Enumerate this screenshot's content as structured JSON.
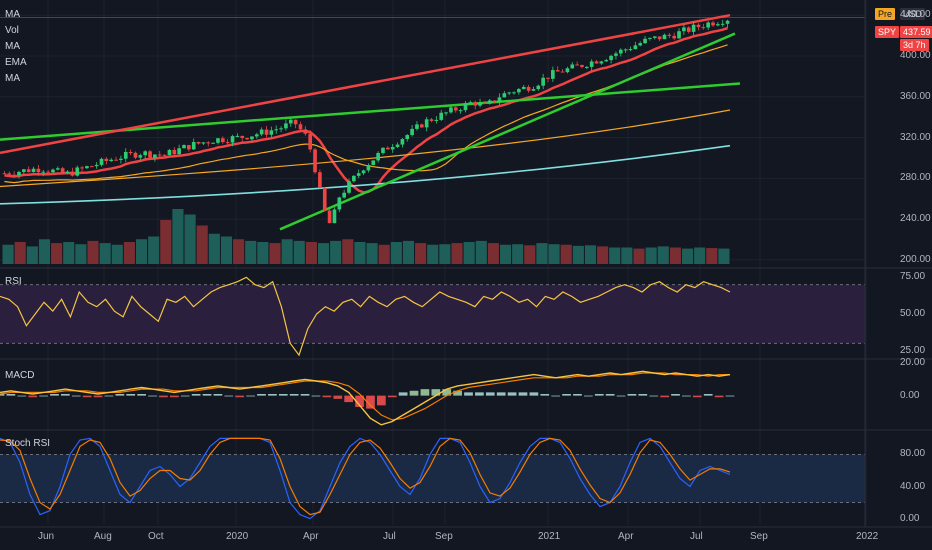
{
  "top_right": {
    "session": "Pre",
    "currency": "USD",
    "symbol": "SPY",
    "price": "437.59",
    "countdown": "3d 7h"
  },
  "indicator_labels": [
    "MA",
    "Vol",
    "MA",
    "EMA",
    "MA"
  ],
  "panes": {
    "rsi_label": "RSI",
    "macd_label": "MACD",
    "stoch_label": "Stoch RSI"
  },
  "colors": {
    "background": "#131722",
    "up": "#26a69a",
    "down": "#ef5350",
    "trend_green": "#2ecc2e",
    "trend_red": "#f04444",
    "ma_orange": "#f5a623",
    "ma_cyan": "#80e0e0",
    "rsi_line": "#f5c542",
    "rsi_band": "#2a1f3d",
    "macd_line": "#f5c542",
    "signal_line": "#f57c00",
    "stoch_k": "#2962ff",
    "stoch_d": "#f57c00"
  },
  "chart_data": [
    {
      "type": "candlestick",
      "x_axis_labels": [
        "Jun",
        "Aug",
        "Oct",
        "2020",
        "Apr",
        "Jul",
        "Sep",
        "2021",
        "Apr",
        "Jul",
        "Sep",
        "2022"
      ],
      "y_axis_labels": [
        "440.00",
        "400.00",
        "360.00",
        "320.00",
        "280.00",
        "240.00",
        "200.00"
      ],
      "ylim": [
        195,
        450
      ],
      "close_path": [
        [
          0,
          285
        ],
        [
          6,
          290
        ],
        [
          10,
          284
        ],
        [
          14,
          292
        ],
        [
          18,
          300
        ],
        [
          22,
          305
        ],
        [
          26,
          303
        ],
        [
          30,
          312
        ],
        [
          34,
          318
        ],
        [
          38,
          320
        ],
        [
          42,
          325
        ],
        [
          45,
          330
        ],
        [
          47,
          335
        ],
        [
          49,
          320
        ],
        [
          50,
          300
        ],
        [
          51,
          270
        ],
        [
          52,
          245
        ],
        [
          53,
          232
        ],
        [
          54,
          260
        ],
        [
          56,
          275
        ],
        [
          58,
          290
        ],
        [
          60,
          300
        ],
        [
          62,
          310
        ],
        [
          64,
          318
        ],
        [
          66,
          325
        ],
        [
          68,
          335
        ],
        [
          70,
          340
        ],
        [
          72,
          345
        ],
        [
          74,
          350
        ],
        [
          76,
          355
        ],
        [
          78,
          350
        ],
        [
          80,
          360
        ],
        [
          82,
          365
        ],
        [
          84,
          368
        ],
        [
          86,
          372
        ],
        [
          88,
          380
        ],
        [
          90,
          385
        ],
        [
          92,
          388
        ],
        [
          94,
          392
        ],
        [
          96,
          396
        ],
        [
          98,
          400
        ],
        [
          100,
          405
        ],
        [
          102,
          410
        ],
        [
          104,
          415
        ],
        [
          106,
          418
        ],
        [
          108,
          420
        ],
        [
          110,
          424
        ],
        [
          112,
          428
        ],
        [
          114,
          432
        ],
        [
          116,
          435
        ],
        [
          118,
          437.59
        ]
      ],
      "volume_relative": [
        0.35,
        0.4,
        0.32,
        0.45,
        0.38,
        0.4,
        0.36,
        0.42,
        0.38,
        0.35,
        0.4,
        0.45,
        0.5,
        0.8,
        1.0,
        0.9,
        0.7,
        0.55,
        0.5,
        0.45,
        0.42,
        0.4,
        0.38,
        0.45,
        0.42,
        0.4,
        0.38,
        0.42,
        0.45,
        0.4,
        0.38,
        0.35,
        0.4,
        0.42,
        0.38,
        0.35,
        0.36,
        0.38,
        0.4,
        0.42,
        0.38,
        0.35,
        0.36,
        0.34,
        0.38,
        0.36,
        0.35,
        0.33,
        0.34,
        0.32,
        0.3,
        0.3,
        0.28,
        0.3,
        0.32,
        0.3,
        0.28,
        0.3,
        0.29,
        0.28
      ]
    },
    {
      "type": "line",
      "name_on_chart": "RSI",
      "y_axis_labels": [
        "75.00",
        "50.00",
        "25.00"
      ],
      "ylim": [
        20,
        80
      ],
      "bands": [
        30,
        70
      ],
      "values": [
        62,
        60,
        55,
        42,
        50,
        58,
        52,
        60,
        48,
        65,
        58,
        55,
        60,
        52,
        48,
        62,
        55,
        50,
        45,
        60,
        58,
        62,
        55,
        60,
        65,
        68,
        70,
        72,
        75,
        70,
        68,
        72,
        55,
        30,
        22,
        40,
        50,
        55,
        52,
        58,
        60,
        55,
        62,
        58,
        55,
        60,
        62,
        58,
        55,
        60,
        65,
        62,
        60,
        58,
        55,
        62,
        60,
        65,
        62,
        58,
        60,
        55,
        62,
        60,
        65,
        62,
        58,
        60,
        62,
        65,
        68,
        70,
        68,
        65,
        70,
        72,
        68,
        65,
        70,
        68,
        72,
        70,
        68,
        65
      ]
    },
    {
      "type": "line",
      "name_on_chart": "MACD",
      "y_axis_labels": [
        "20.00",
        "0.00"
      ],
      "ylim": [
        -20,
        22
      ],
      "macd": [
        2,
        3,
        2,
        1,
        2,
        3,
        4,
        3,
        2,
        1,
        2,
        3,
        4,
        5,
        4,
        3,
        2,
        3,
        4,
        5,
        6,
        5,
        4,
        5,
        6,
        7,
        8,
        9,
        10,
        9,
        8,
        6,
        2,
        -6,
        -14,
        -18,
        -16,
        -12,
        -8,
        -4,
        0,
        4,
        6,
        7,
        8,
        9,
        10,
        11,
        12,
        13,
        12,
        11,
        12,
        13,
        12,
        13,
        14,
        13,
        14,
        15,
        14,
        13,
        14,
        13,
        12,
        13,
        12,
        13
      ],
      "signal": [
        1,
        2,
        2,
        2,
        2,
        2,
        3,
        3,
        3,
        2,
        2,
        2,
        3,
        4,
        4,
        4,
        3,
        3,
        3,
        4,
        5,
        5,
        5,
        5,
        5,
        6,
        7,
        8,
        9,
        9,
        9,
        8,
        6,
        1,
        -6,
        -12,
        -15,
        -14,
        -11,
        -8,
        -4,
        0,
        3,
        5,
        6,
        7,
        8,
        9,
        10,
        11,
        11,
        11,
        11,
        12,
        12,
        12,
        13,
        13,
        13,
        14,
        14,
        14,
        13,
        13,
        13,
        12,
        13,
        13
      ],
      "hist": [
        1,
        1,
        0,
        -1,
        0,
        1,
        1,
        0,
        -1,
        -1,
        0,
        1,
        1,
        1,
        0,
        -1,
        -1,
        0,
        1,
        1,
        1,
        0,
        -1,
        0,
        1,
        1,
        1,
        1,
        1,
        0,
        -1,
        -2,
        -4,
        -7,
        -8,
        -6,
        -1,
        2,
        3,
        4,
        4,
        4,
        3,
        2,
        2,
        2,
        2,
        2,
        2,
        2,
        1,
        0,
        1,
        1,
        0,
        1,
        1,
        0,
        1,
        1,
        0,
        -1,
        1,
        0,
        -1,
        1,
        -1,
        0
      ]
    },
    {
      "type": "line",
      "name_on_chart": "Stoch RSI",
      "y_axis_labels": [
        "80.00",
        "40.00",
        "0.00"
      ],
      "ylim": [
        -8,
        108
      ],
      "bands": [
        20,
        80
      ],
      "k": [
        100,
        95,
        70,
        30,
        5,
        10,
        40,
        80,
        98,
        100,
        90,
        60,
        30,
        20,
        40,
        60,
        65,
        55,
        40,
        50,
        70,
        90,
        100,
        100,
        100,
        100,
        100,
        95,
        60,
        20,
        5,
        0,
        10,
        40,
        70,
        90,
        100,
        95,
        80,
        60,
        40,
        30,
        50,
        80,
        100,
        100,
        95,
        70,
        40,
        20,
        25,
        45,
        70,
        90,
        100,
        100,
        95,
        75,
        50,
        30,
        15,
        20,
        40,
        70,
        95,
        100,
        90,
        70,
        50,
        40,
        60,
        65,
        60,
        55
      ],
      "d": [
        98,
        97,
        85,
        50,
        20,
        12,
        30,
        60,
        90,
        98,
        95,
        75,
        45,
        28,
        35,
        50,
        60,
        60,
        50,
        48,
        60,
        80,
        95,
        100,
        100,
        100,
        100,
        98,
        75,
        40,
        15,
        5,
        8,
        30,
        55,
        80,
        95,
        98,
        88,
        70,
        50,
        38,
        45,
        65,
        90,
        100,
        98,
        82,
        55,
        32,
        28,
        38,
        58,
        80,
        95,
        100,
        98,
        85,
        62,
        42,
        25,
        20,
        32,
        55,
        82,
        98,
        95,
        80,
        62,
        48,
        55,
        62,
        62,
        58
      ]
    }
  ]
}
